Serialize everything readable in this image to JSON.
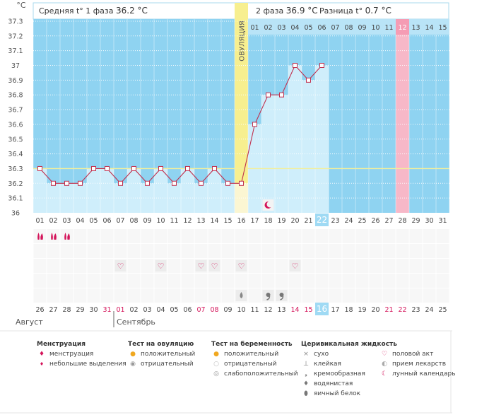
{
  "chart_data": {
    "type": "line",
    "title": "",
    "ylabel": "°C",
    "ylim": [
      36.0,
      37.35
    ],
    "yticks": [
      "37.3",
      "37.2",
      "37.1",
      "37",
      "36.9",
      "36.8",
      "36.7",
      "36.6",
      "36.5",
      "36.4",
      "36.3",
      "36.2",
      "36.1",
      "36"
    ],
    "header": {
      "phase1_label": "Средняя t° 1 фаза",
      "phase1_value": "36.2 °C",
      "phase2_label": "2 фаза",
      "phase2_value": "36.9 °C",
      "diff_label": "Разница t°",
      "diff_value": "0.7 °C"
    },
    "ovulation_label": "ОВУЛЯЦИЯ",
    "cycle_days": [
      "01",
      "02",
      "03",
      "04",
      "05",
      "06",
      "07",
      "08",
      "09",
      "10",
      "11",
      "12",
      "13",
      "14",
      "15",
      "16",
      "17",
      "18",
      "19",
      "20",
      "21",
      "22",
      "23",
      "24",
      "25",
      "26",
      "27",
      "28",
      "29",
      "30",
      "31"
    ],
    "phase2_days": [
      "01",
      "02",
      "03",
      "04",
      "05",
      "06",
      "07",
      "08",
      "09",
      "10",
      "11",
      "12",
      "13",
      "14",
      "15"
    ],
    "temperatures": [
      36.3,
      36.2,
      36.2,
      36.2,
      36.3,
      36.3,
      36.2,
      36.3,
      36.2,
      36.3,
      36.2,
      36.3,
      36.2,
      36.3,
      36.2,
      36.2,
      36.6,
      36.8,
      36.8,
      37.0,
      36.9,
      37.0
    ],
    "coverline": 36.3,
    "ovulation_day": 16,
    "current_day": 22,
    "expected_period_day": 28,
    "menstruation_days": [
      1,
      2,
      3
    ],
    "intercourse_days": [
      7,
      10,
      13,
      14,
      16,
      20
    ],
    "ovulation_test_days": [],
    "cervical_fluid": [
      {
        "day": 16,
        "type": "watery"
      },
      {
        "day": 18,
        "type": "creamy"
      },
      {
        "day": 19,
        "type": "creamy"
      }
    ],
    "moon_day": 18,
    "dates": [
      "26",
      "27",
      "28",
      "29",
      "30",
      "31",
      "01",
      "02",
      "03",
      "04",
      "05",
      "06",
      "07",
      "08",
      "09",
      "10",
      "11",
      "12",
      "13",
      "14",
      "15",
      "16",
      "17",
      "18",
      "19",
      "20",
      "21",
      "22",
      "23",
      "24",
      "25"
    ],
    "date_colors": [
      "n",
      "n",
      "n",
      "n",
      "n",
      "r",
      "r",
      "n",
      "n",
      "n",
      "n",
      "n",
      "r",
      "r",
      "n",
      "n",
      "n",
      "n",
      "n",
      "r",
      "r",
      "c",
      "n",
      "n",
      "n",
      "n",
      "r",
      "r",
      "n",
      "n",
      "n"
    ],
    "month1": "Август",
    "month2": "Сентябрь"
  },
  "legend": {
    "menstruation": {
      "title": "Менструация",
      "items": [
        "менструация",
        "небольшие выделения"
      ]
    },
    "ovulation_test": {
      "title": "Тест на овуляцию",
      "items": [
        "положительный",
        "отрицательный"
      ]
    },
    "pregnancy_test": {
      "title": "Тест на беременность",
      "items": [
        "положительный",
        "отрицательный",
        "слабоположительный"
      ]
    },
    "cervical": {
      "title": "Церивикальная жидкость",
      "items": [
        "сухо",
        "клейкая",
        "кремообразная",
        "водянистая",
        "яичный белок"
      ]
    },
    "other": {
      "items": [
        "половой акт",
        "прием лекарств",
        "лунный календарь"
      ]
    }
  },
  "colors": {
    "sky": "#8fd3f1",
    "bar": "#cfeefb",
    "line": "#c0304e",
    "coverline": "#f3ef9a",
    "ovulation": "#f7ef8f",
    "period": "#f7b8c8",
    "current": "#9fdaf4",
    "accent": "#d4145a"
  }
}
